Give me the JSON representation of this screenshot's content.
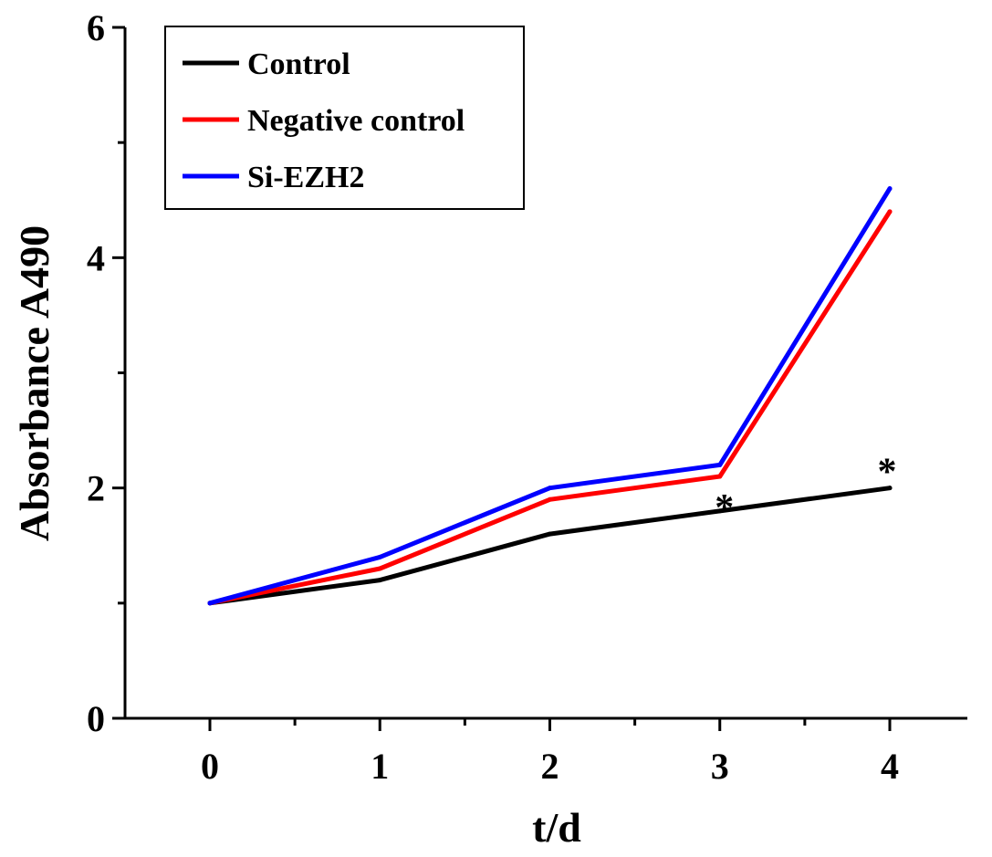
{
  "chart_data": {
    "type": "line",
    "title": "",
    "xlabel": "t/d",
    "ylabel": "Absorbance A490",
    "x": [
      0,
      1,
      2,
      3,
      4
    ],
    "xlim": [
      0,
      4
    ],
    "ylim": [
      0,
      6
    ],
    "xticks": [
      "0",
      "1",
      "2",
      "3",
      "4"
    ],
    "yticks": [
      "0",
      "2",
      "4",
      "6"
    ],
    "grid": false,
    "legend_position": "top-left",
    "series": [
      {
        "name": "Control",
        "color": "#000000",
        "values": [
          1.0,
          1.2,
          1.6,
          1.8,
          2.0
        ]
      },
      {
        "name": "Negative control",
        "color": "#ff0000",
        "values": [
          1.0,
          1.3,
          1.9,
          2.1,
          4.4
        ]
      },
      {
        "name": "Si-EZH2",
        "color": "#0000ff",
        "values": [
          1.0,
          1.4,
          2.0,
          2.2,
          4.6
        ]
      }
    ],
    "annotations": [
      {
        "text": "*",
        "x": 3,
        "y": 1.8
      },
      {
        "text": "*",
        "x": 4,
        "y": 2.0
      }
    ]
  }
}
